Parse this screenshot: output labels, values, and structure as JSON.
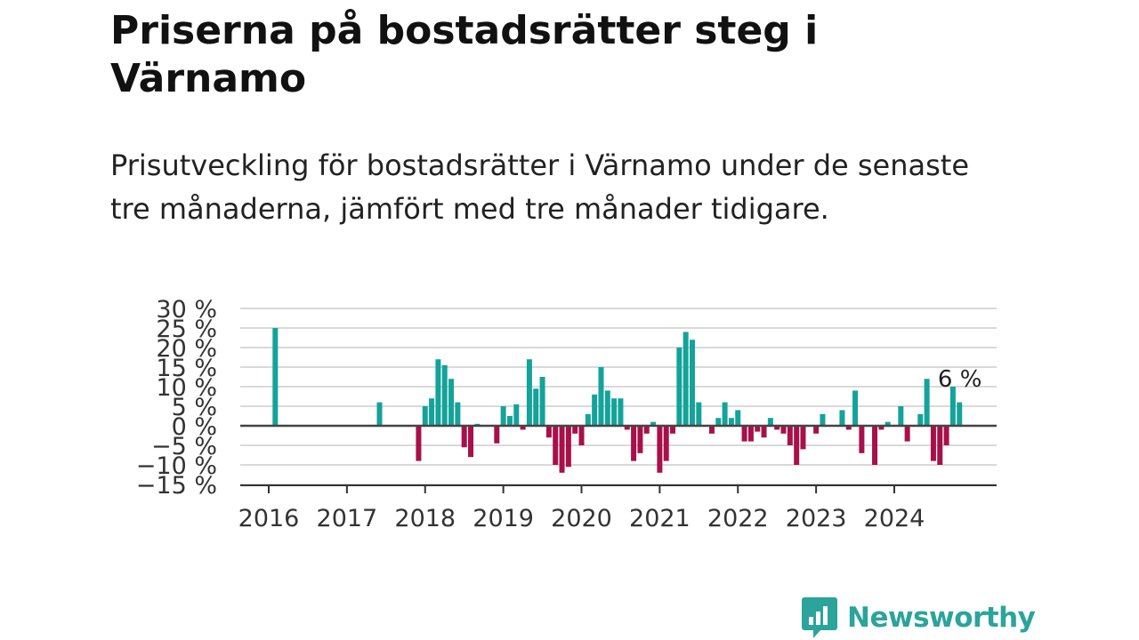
{
  "title": "Priserna på bostadsrätter steg i Värnamo",
  "subtitle": "Prisutveckling för bostadsrätter i Värnamo under de senaste tre månaderna, jämfört med tre månader tidigare.",
  "brand": {
    "name": "Newsworthy",
    "logo_icon": "chart-bubble-icon",
    "color": "#2ba49b"
  },
  "colors": {
    "positive": "#14a39a",
    "negative": "#a8104a",
    "grid": "#d9d9d9",
    "zero_line": "#444444"
  },
  "chart_data": {
    "type": "bar",
    "title": "Priserna på bostadsrätter steg i Värnamo",
    "subtitle": "Prisutveckling för bostadsrätter i Värnamo under de senaste tre månaderna, jämfört med tre månader tidigare.",
    "xlabel": "",
    "ylabel": "",
    "ylim": [
      -15,
      30
    ],
    "yticks": [
      30,
      25,
      20,
      15,
      10,
      5,
      0,
      -5,
      -10,
      -15
    ],
    "ytick_labels": [
      "30 %",
      "25 %",
      "20 %",
      "15 %",
      "10 %",
      "5 %",
      "0 %",
      "−5 %",
      "−10 %",
      "−15 %"
    ],
    "xticks": [
      2016,
      2017,
      2018,
      2019,
      2020,
      2021,
      2022,
      2023,
      2024
    ],
    "grid": true,
    "annotation": {
      "label": "6 %",
      "at": "2024-10"
    },
    "bars": [
      {
        "date": "2016-02",
        "value": 25
      },
      {
        "date": "2017-06",
        "value": 6
      },
      {
        "date": "2017-12",
        "value": -9
      },
      {
        "date": "2018-01",
        "value": 5
      },
      {
        "date": "2018-02",
        "value": 7
      },
      {
        "date": "2018-03",
        "value": 17
      },
      {
        "date": "2018-04",
        "value": 15.5
      },
      {
        "date": "2018-05",
        "value": 12
      },
      {
        "date": "2018-06",
        "value": 6
      },
      {
        "date": "2018-07",
        "value": -5.5
      },
      {
        "date": "2018-08",
        "value": -8
      },
      {
        "date": "2018-09",
        "value": 0.5
      },
      {
        "date": "2018-12",
        "value": -4.5
      },
      {
        "date": "2019-01",
        "value": 5
      },
      {
        "date": "2019-02",
        "value": 2.5
      },
      {
        "date": "2019-03",
        "value": 5.5
      },
      {
        "date": "2019-04",
        "value": -1
      },
      {
        "date": "2019-05",
        "value": 17
      },
      {
        "date": "2019-06",
        "value": 9.5
      },
      {
        "date": "2019-07",
        "value": 12.5
      },
      {
        "date": "2019-08",
        "value": -3
      },
      {
        "date": "2019-09",
        "value": -10
      },
      {
        "date": "2019-10",
        "value": -12
      },
      {
        "date": "2019-11",
        "value": -10.5
      },
      {
        "date": "2019-12",
        "value": -2
      },
      {
        "date": "2020-01",
        "value": -5
      },
      {
        "date": "2020-02",
        "value": 3
      },
      {
        "date": "2020-03",
        "value": 8
      },
      {
        "date": "2020-04",
        "value": 15
      },
      {
        "date": "2020-05",
        "value": 9
      },
      {
        "date": "2020-06",
        "value": 7
      },
      {
        "date": "2020-07",
        "value": 7
      },
      {
        "date": "2020-08",
        "value": -1
      },
      {
        "date": "2020-09",
        "value": -9
      },
      {
        "date": "2020-10",
        "value": -7
      },
      {
        "date": "2020-11",
        "value": -2
      },
      {
        "date": "2020-12",
        "value": 1
      },
      {
        "date": "2021-01",
        "value": -12
      },
      {
        "date": "2021-02",
        "value": -9
      },
      {
        "date": "2021-03",
        "value": -2
      },
      {
        "date": "2021-04",
        "value": 20
      },
      {
        "date": "2021-05",
        "value": 24
      },
      {
        "date": "2021-06",
        "value": 22
      },
      {
        "date": "2021-07",
        "value": 6
      },
      {
        "date": "2021-09",
        "value": -2
      },
      {
        "date": "2021-10",
        "value": 2
      },
      {
        "date": "2021-11",
        "value": 6
      },
      {
        "date": "2021-12",
        "value": 2
      },
      {
        "date": "2022-01",
        "value": 4
      },
      {
        "date": "2022-02",
        "value": -4
      },
      {
        "date": "2022-03",
        "value": -4
      },
      {
        "date": "2022-04",
        "value": -1.5
      },
      {
        "date": "2022-05",
        "value": -3
      },
      {
        "date": "2022-06",
        "value": 2
      },
      {
        "date": "2022-07",
        "value": -1
      },
      {
        "date": "2022-08",
        "value": -2
      },
      {
        "date": "2022-09",
        "value": -5
      },
      {
        "date": "2022-10",
        "value": -10
      },
      {
        "date": "2022-11",
        "value": -6
      },
      {
        "date": "2023-01",
        "value": -2
      },
      {
        "date": "2023-02",
        "value": 3
      },
      {
        "date": "2023-05",
        "value": 4
      },
      {
        "date": "2023-06",
        "value": -1
      },
      {
        "date": "2023-07",
        "value": 9
      },
      {
        "date": "2023-08",
        "value": -7
      },
      {
        "date": "2023-10",
        "value": -10
      },
      {
        "date": "2023-11",
        "value": -1
      },
      {
        "date": "2023-12",
        "value": 1
      },
      {
        "date": "2024-02",
        "value": 5
      },
      {
        "date": "2024-03",
        "value": -4
      },
      {
        "date": "2024-05",
        "value": 3
      },
      {
        "date": "2024-06",
        "value": 12
      },
      {
        "date": "2024-07",
        "value": -9
      },
      {
        "date": "2024-08",
        "value": -10
      },
      {
        "date": "2024-09",
        "value": -5
      },
      {
        "date": "2024-10",
        "value": 10
      },
      {
        "date": "2024-11",
        "value": 6
      }
    ]
  }
}
